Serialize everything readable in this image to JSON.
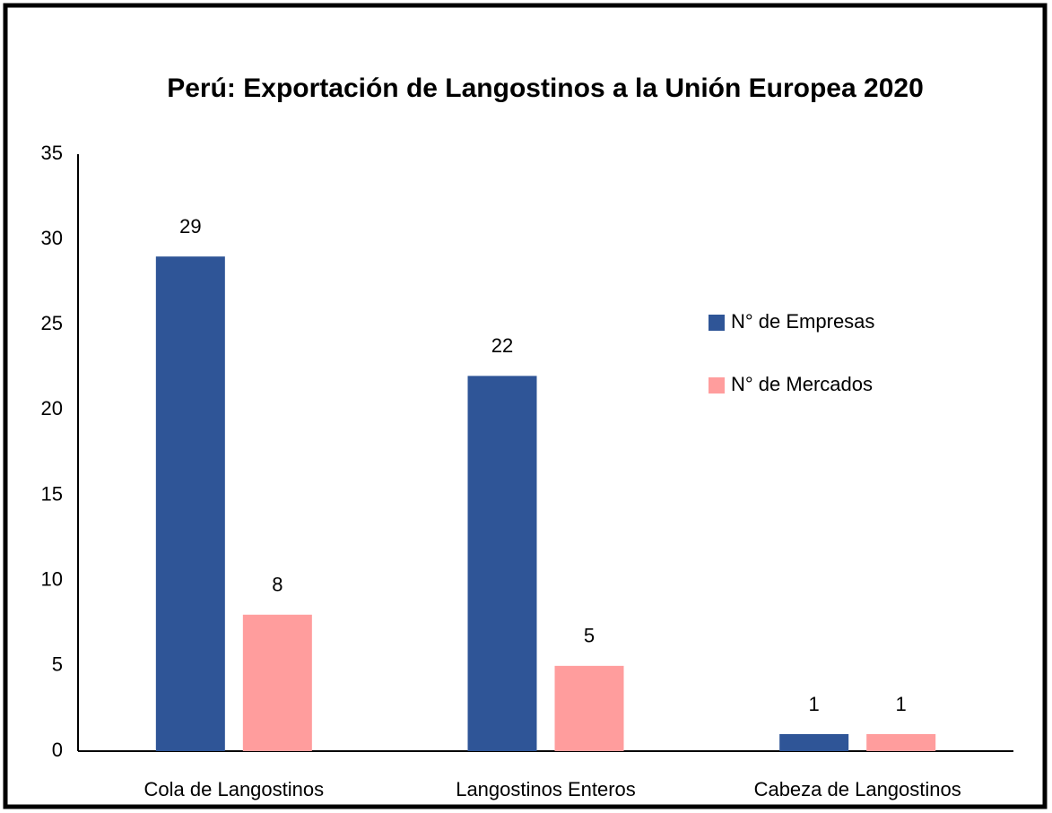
{
  "chart_data": {
    "type": "bar",
    "title": "Perú: Exportación de Langostinos a la Unión Europea 2020",
    "categories": [
      "Cola de Langostinos",
      "Langostinos Enteros",
      "Cabeza de Langostinos"
    ],
    "series": [
      {
        "name": "N° de Empresas",
        "color": "#2f5597",
        "values": [
          29,
          22,
          1
        ]
      },
      {
        "name": "N° de Mercados",
        "color": "#ff9d9d",
        "values": [
          8,
          5,
          1
        ]
      }
    ],
    "ylim": [
      0,
      35
    ],
    "yticks": [
      0,
      5,
      10,
      15,
      20,
      25,
      30,
      35
    ],
    "grid": false,
    "legend": "right"
  }
}
